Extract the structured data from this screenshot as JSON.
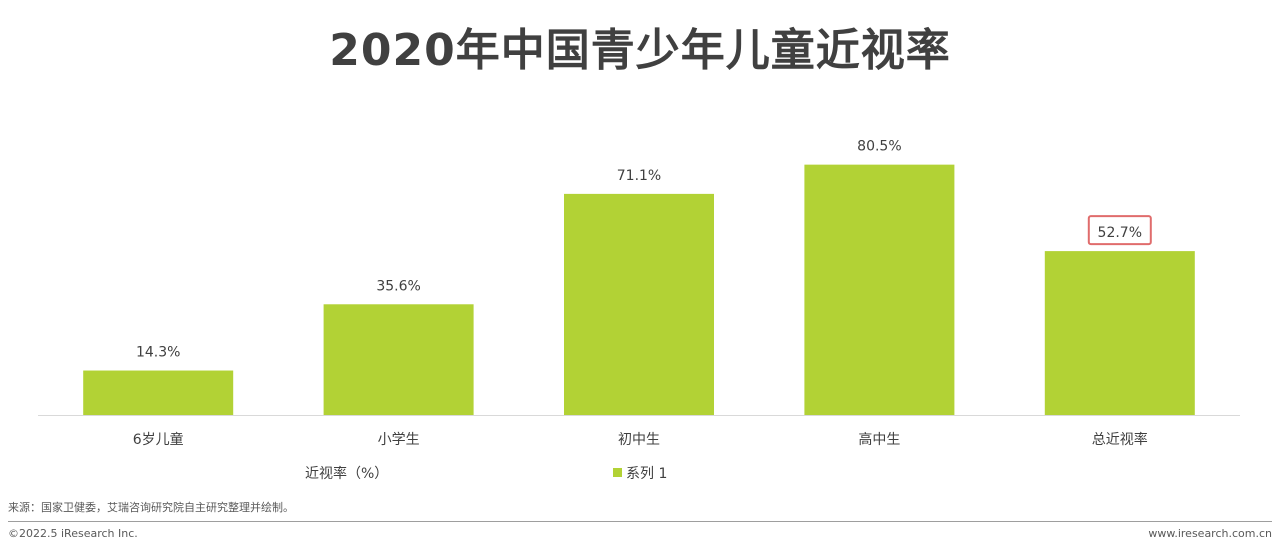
{
  "title": "2020年中国青少年儿童近视率",
  "chart_data": {
    "type": "bar",
    "categories": [
      "6岁儿童",
      "小学生",
      "初中生",
      "高中生",
      "总近视率"
    ],
    "series": [
      {
        "name": "系列 1",
        "values": [
          14.3,
          35.6,
          71.1,
          80.5,
          52.7
        ],
        "labels": [
          "14.3%",
          "35.6%",
          "71.1%",
          "80.5%",
          "52.7%"
        ],
        "color": "#b2d235"
      }
    ],
    "ylim": [
      0,
      100
    ],
    "highlighted_label": "52.7%",
    "highlight_color": "#e06c6c",
    "legend_extra_text": "近视率（%）",
    "legend_position": "bottom",
    "grid": false
  },
  "footer": {
    "source": "来源：国家卫健委，艾瑞咨询研究院自主研究整理并绘制。",
    "copyright": "©2022.5 iResearch Inc.",
    "website": "www.iresearch.com.cn"
  }
}
